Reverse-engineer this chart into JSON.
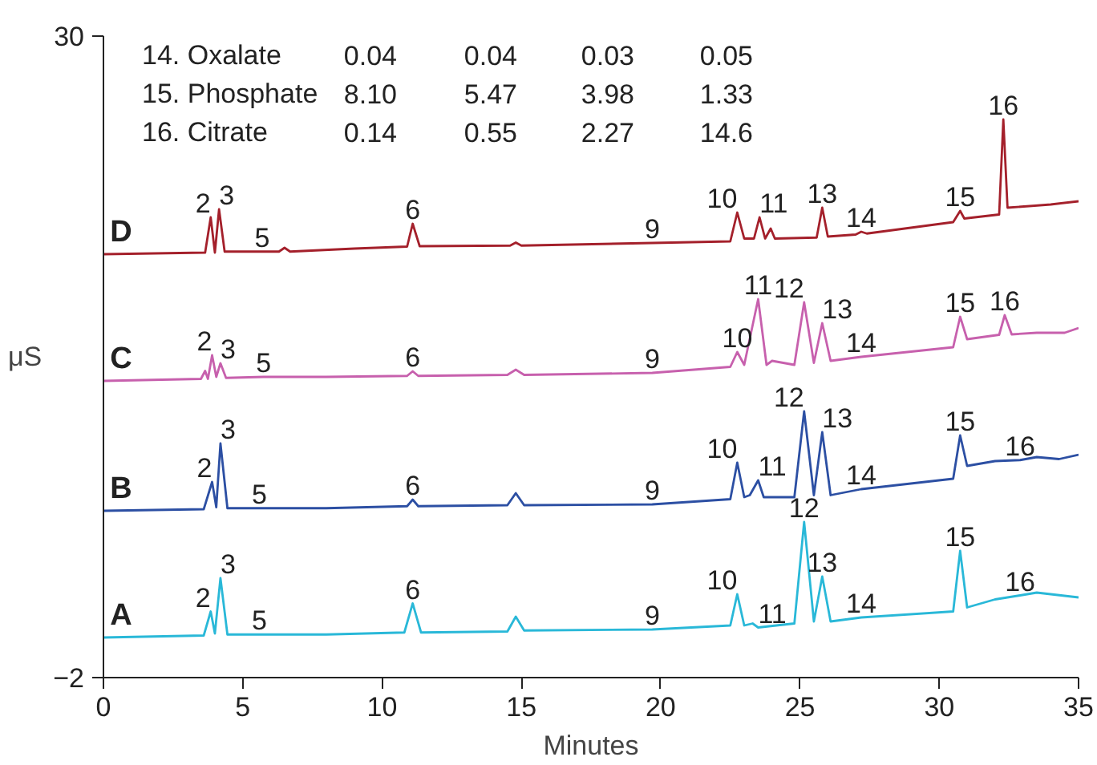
{
  "chart_data": {
    "type": "line",
    "xlabel": "Minutes",
    "ylabel": "μS",
    "xlim": [
      0,
      35
    ],
    "xticks": [
      0,
      5,
      10,
      15,
      20,
      25,
      30,
      35
    ],
    "ylim": [
      -2,
      30
    ],
    "yticks": [
      {
        "value": -2,
        "label": "−2"
      },
      30
    ],
    "grid": false,
    "marker": "none",
    "line_style": "solid",
    "series": [
      {
        "name": "A",
        "color": "#29b8d8",
        "x": [
          0,
          3.6,
          3.85,
          4.0,
          4.2,
          4.45,
          5.6,
          8,
          10.8,
          11.1,
          11.4,
          14.5,
          14.8,
          15.1,
          19.7,
          22.5,
          22.75,
          23.0,
          23.3,
          23.5,
          24.8,
          25.15,
          25.5,
          25.8,
          26.1,
          27.2,
          30.5,
          30.75,
          31.0,
          32,
          32.9,
          33.5,
          35
        ],
        "values": [
          0.0,
          0.1,
          1.3,
          0.2,
          2.96,
          0.15,
          0.15,
          0.15,
          0.25,
          1.7,
          0.25,
          0.3,
          1.04,
          0.35,
          0.4,
          0.6,
          2.16,
          0.6,
          0.7,
          0.5,
          0.7,
          5.76,
          0.8,
          3.04,
          0.8,
          1.0,
          1.3,
          4.32,
          1.5,
          1.9,
          2.1,
          2.24,
          2.0
        ]
      },
      {
        "name": "B",
        "color": "#2c4fa3",
        "x": [
          0,
          3.6,
          3.9,
          4.05,
          4.2,
          4.45,
          5.6,
          8,
          10.9,
          11.1,
          11.3,
          14.5,
          14.8,
          15.1,
          19.7,
          22.5,
          22.75,
          23.0,
          23.2,
          23.5,
          23.7,
          24.8,
          25.15,
          25.5,
          25.8,
          26.1,
          27.2,
          30.5,
          30.75,
          31.0,
          32,
          32.9,
          33.5,
          34.3,
          35
        ],
        "values": [
          6.32,
          6.4,
          7.76,
          6.5,
          9.68,
          6.45,
          6.45,
          6.45,
          6.55,
          6.88,
          6.55,
          6.6,
          7.2,
          6.6,
          6.64,
          6.9,
          8.72,
          7.0,
          7.1,
          7.84,
          7.0,
          7.0,
          11.28,
          7.1,
          10.24,
          7.1,
          7.4,
          7.92,
          10.08,
          8.56,
          8.8,
          8.85,
          9.0,
          8.9,
          9.12
        ]
      },
      {
        "name": "C",
        "color": "#c760ad",
        "x": [
          0,
          3.5,
          3.65,
          3.75,
          3.9,
          4.05,
          4.2,
          4.4,
          5.75,
          8,
          10.9,
          11.1,
          11.3,
          14.5,
          14.8,
          15.1,
          19.7,
          22.5,
          22.75,
          23.0,
          23.5,
          23.8,
          24.0,
          24.8,
          25.15,
          25.5,
          25.8,
          26.1,
          27.2,
          30.5,
          30.75,
          31.0,
          32.15,
          32.35,
          32.6,
          33.5,
          34.5,
          35
        ],
        "values": [
          12.8,
          12.9,
          13.3,
          12.9,
          14.08,
          13.0,
          13.68,
          12.95,
          13.0,
          13.0,
          13.05,
          13.28,
          13.05,
          13.1,
          13.36,
          13.1,
          13.2,
          13.5,
          14.24,
          13.6,
          16.88,
          13.6,
          13.8,
          13.6,
          16.72,
          13.7,
          15.68,
          13.8,
          14.0,
          14.48,
          16.0,
          14.88,
          15.1,
          16.08,
          15.12,
          15.2,
          15.2,
          15.44
        ]
      },
      {
        "name": "D",
        "color": "#a4202b",
        "x": [
          0,
          3.65,
          3.85,
          4.0,
          4.15,
          4.35,
          5.7,
          6.3,
          6.5,
          6.7,
          9,
          10.9,
          11.1,
          11.35,
          14.6,
          14.8,
          15.0,
          19.7,
          22.5,
          22.75,
          23.0,
          23.35,
          23.55,
          23.75,
          23.95,
          24.1,
          25.6,
          25.8,
          26.0,
          27.0,
          27.2,
          27.4,
          30.5,
          30.75,
          30.9,
          32.15,
          32.3,
          32.45,
          34,
          35
        ],
        "values": [
          19.12,
          19.2,
          20.96,
          19.2,
          21.36,
          19.25,
          19.25,
          19.25,
          19.44,
          19.25,
          19.4,
          19.5,
          20.64,
          19.52,
          19.55,
          19.7,
          19.55,
          19.68,
          19.76,
          21.2,
          19.9,
          19.9,
          20.96,
          19.9,
          20.4,
          19.9,
          19.95,
          21.44,
          20.0,
          20.1,
          20.24,
          20.15,
          20.72,
          21.28,
          20.9,
          21.1,
          25.84,
          21.44,
          21.6,
          21.76
        ]
      }
    ],
    "annotations": [
      "14. Oxalate 0.04 0.04 0.03 0.05",
      "15. Phosphate 8.10 5.47 3.98 1.33",
      "16. Citrate 0.14 0.55 2.27 14.6",
      {
        "text": "2",
        "x": 3.85,
        "y": 1.3
      },
      {
        "text": "3",
        "x": 4.2,
        "y": 2.96
      },
      {
        "text": "5",
        "x": 5.6,
        "y": 0.15
      },
      {
        "text": "6",
        "x": 11.1,
        "y": 1.7
      },
      {
        "text": "9",
        "x": 19.7,
        "y": 0.4
      },
      {
        "text": "10",
        "x": 22.75,
        "y": 2.16
      },
      {
        "text": "11",
        "x": 23.5,
        "y": 0.5
      },
      {
        "text": "12",
        "x": 25.15,
        "y": 5.76
      },
      {
        "text": "13",
        "x": 25.8,
        "y": 3.04
      },
      {
        "text": "14",
        "x": 27.2,
        "y": 1.0
      },
      {
        "text": "15",
        "x": 30.75,
        "y": 4.32
      },
      {
        "text": "16",
        "x": 32.9,
        "y": 2.1
      },
      {
        "text": "2",
        "x": 3.9,
        "y": 7.76
      },
      {
        "text": "3",
        "x": 4.2,
        "y": 9.68
      },
      {
        "text": "5",
        "x": 5.6,
        "y": 6.45
      },
      {
        "text": "6",
        "x": 11.1,
        "y": 6.88
      },
      {
        "text": "9",
        "x": 19.7,
        "y": 6.64
      },
      {
        "text": "10",
        "x": 22.75,
        "y": 8.72
      },
      {
        "text": "11",
        "x": 23.5,
        "y": 7.84
      },
      {
        "text": "12",
        "x": 25.15,
        "y": 11.28
      },
      {
        "text": "13",
        "x": 25.8,
        "y": 10.24
      },
      {
        "text": "14",
        "x": 27.2,
        "y": 7.4
      },
      {
        "text": "15",
        "x": 30.75,
        "y": 10.08
      },
      {
        "text": "16",
        "x": 32.9,
        "y": 8.85
      },
      {
        "text": "2",
        "x": 3.9,
        "y": 14.08
      },
      {
        "text": "3",
        "x": 4.2,
        "y": 13.68
      },
      {
        "text": "5",
        "x": 5.75,
        "y": 13.0
      },
      {
        "text": "6",
        "x": 11.1,
        "y": 13.28
      },
      {
        "text": "9",
        "x": 19.7,
        "y": 13.2
      },
      {
        "text": "10",
        "x": 22.75,
        "y": 14.24
      },
      {
        "text": "11",
        "x": 23.5,
        "y": 16.88
      },
      {
        "text": "12",
        "x": 25.15,
        "y": 16.72
      },
      {
        "text": "13",
        "x": 25.8,
        "y": 15.68
      },
      {
        "text": "14",
        "x": 27.2,
        "y": 14.0
      },
      {
        "text": "15",
        "x": 30.75,
        "y": 16.0
      },
      {
        "text": "16",
        "x": 32.35,
        "y": 16.08
      },
      {
        "text": "2",
        "x": 3.85,
        "y": 20.96
      },
      {
        "text": "3",
        "x": 4.15,
        "y": 21.36
      },
      {
        "text": "5",
        "x": 5.7,
        "y": 19.25
      },
      {
        "text": "6",
        "x": 11.1,
        "y": 20.64
      },
      {
        "text": "9",
        "x": 19.7,
        "y": 19.68
      },
      {
        "text": "10",
        "x": 22.75,
        "y": 21.2
      },
      {
        "text": "11",
        "x": 23.55,
        "y": 20.96
      },
      {
        "text": "13",
        "x": 25.8,
        "y": 21.44
      },
      {
        "text": "14",
        "x": 27.2,
        "y": 20.24
      },
      {
        "text": "15",
        "x": 30.75,
        "y": 21.28
      },
      {
        "text": "16",
        "x": 32.3,
        "y": 25.84
      }
    ]
  }
}
